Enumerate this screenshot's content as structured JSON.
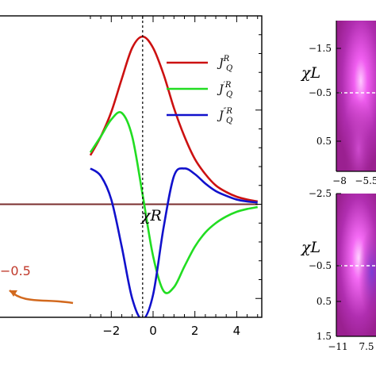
{
  "chart_data": [
    {
      "type": "line",
      "xlim": [
        -7.4,
        5.2
      ],
      "ylim": [
        -1.2,
        2.0
      ],
      "x_ticks": [
        -2,
        0,
        2,
        4
      ],
      "x_tick_labels": [
        "−2",
        "0",
        "2",
        "4"
      ],
      "axis_label": "χR",
      "annotation": "−0.5",
      "vline_x": -0.5,
      "grid": false,
      "legend_position": "top-right",
      "series": [
        {
          "name": "J_Q^R",
          "legend_main": "J",
          "legend_sub": "Q",
          "legend_sup": "R",
          "color": "#cc1111",
          "x": [
            -3,
            -2.5,
            -2,
            -1.5,
            -1,
            -0.5,
            0,
            0.5,
            1,
            1.5,
            2,
            2.5,
            3,
            3.5,
            4,
            4.5,
            5
          ],
          "y": [
            0.52,
            0.72,
            0.98,
            1.33,
            1.66,
            1.78,
            1.66,
            1.38,
            1.02,
            0.72,
            0.48,
            0.32,
            0.2,
            0.13,
            0.08,
            0.05,
            0.03
          ]
        },
        {
          "name": "J'_Q^R",
          "legend_main": "J",
          "legend_sub": "Q",
          "legend_sup": "′R",
          "color": "#22dd22",
          "x": [
            -3,
            -2.5,
            -2,
            -1.5,
            -1,
            -0.5,
            0,
            0.5,
            1,
            1.5,
            2,
            2.5,
            3,
            3.5,
            4,
            4.5,
            5
          ],
          "y": [
            0.55,
            0.72,
            0.9,
            0.97,
            0.72,
            0.1,
            -0.55,
            -0.92,
            -0.88,
            -0.66,
            -0.45,
            -0.3,
            -0.2,
            -0.13,
            -0.08,
            -0.05,
            -0.03
          ]
        },
        {
          "name": "J''_Q^R",
          "legend_main": "J",
          "legend_sub": "Q",
          "legend_sup": "″R",
          "color": "#1111cc",
          "x": [
            -3,
            -2.5,
            -2,
            -1.5,
            -1,
            -0.5,
            0,
            0.5,
            1,
            1.5,
            2,
            2.5,
            3,
            3.5,
            4,
            4.5,
            5
          ],
          "y": [
            0.38,
            0.3,
            0.05,
            -0.45,
            -1.0,
            -1.22,
            -0.96,
            -0.25,
            0.3,
            0.38,
            0.32,
            0.22,
            0.14,
            0.09,
            0.05,
            0.03,
            0.02
          ]
        },
        {
          "name": "baseline",
          "color": "#7a2e2e",
          "x": [
            -7.4,
            5
          ],
          "y": [
            0,
            0
          ]
        }
      ]
    },
    {
      "type": "heatmap",
      "panel": "top",
      "ylabel": "χL",
      "y_tick_labels": [
        "−1.5",
        "−0.5",
        "0.5"
      ],
      "x_tick_labels": [
        "−8",
        "−5.5"
      ],
      "dashed_level": -0.5,
      "colors": [
        "#a0209a",
        "#ff66ff"
      ]
    },
    {
      "type": "heatmap",
      "panel": "bottom",
      "ylabel": "χL",
      "y_tick_labels": [
        "−2.5",
        "−0.5",
        "0.5",
        "1.5"
      ],
      "x_tick_labels": [
        "−11",
        "7.5"
      ],
      "dashed_level": -0.5,
      "colors": [
        "#a0209a",
        "#ff66ff"
      ]
    }
  ]
}
